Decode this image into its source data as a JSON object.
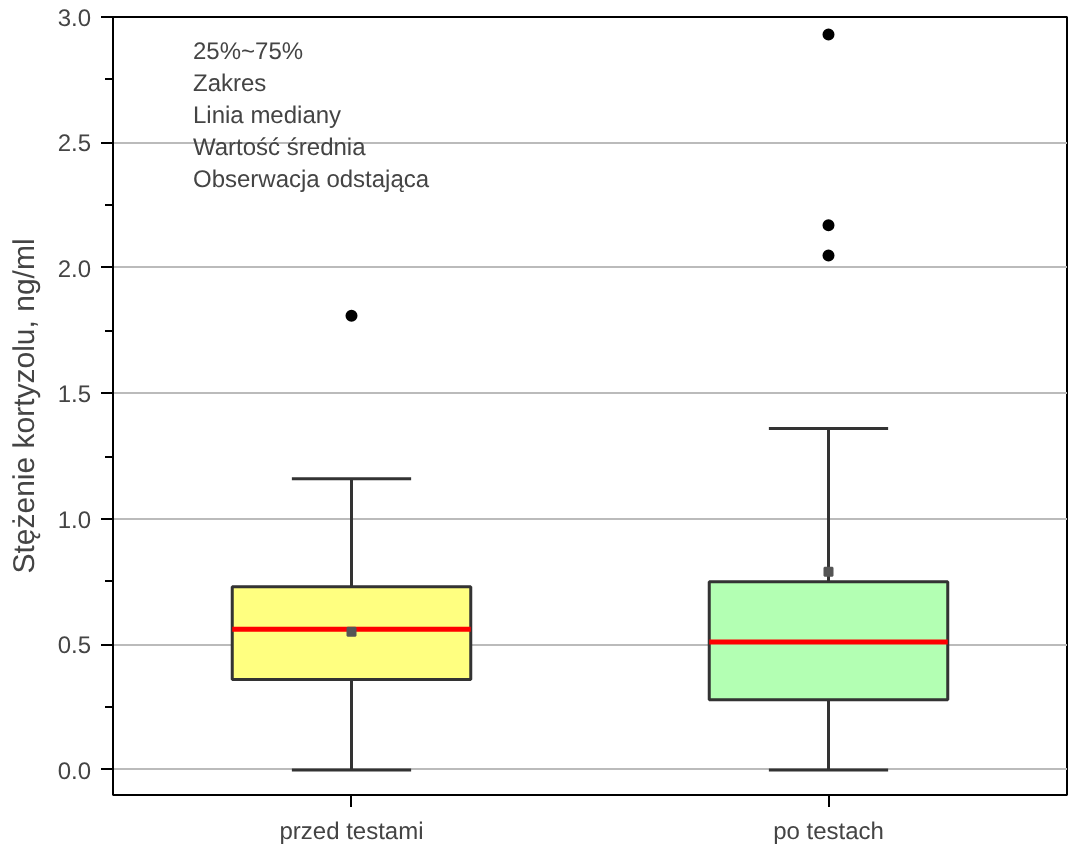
{
  "chart_data": {
    "type": "box",
    "ylabel": "Stężenie kortyzolu, ng/ml",
    "categories": [
      "przed testami",
      "po testach"
    ],
    "boxes": [
      {
        "low": 0,
        "q1": 0.36,
        "median": 0.56,
        "q3": 0.73,
        "high": 1.16,
        "mean": 0.55,
        "outliers": [
          1.81
        ]
      },
      {
        "low": 0,
        "q1": 0.28,
        "median": 0.51,
        "q3": 0.75,
        "high": 1.36,
        "mean": 0.79,
        "outliers": [
          2.93,
          2.17,
          2.05
        ]
      }
    ],
    "colors": [
      "#ffff80",
      "#b3ffb3"
    ],
    "ylim": [
      -0.1,
      3.0
    ],
    "yticks": [
      {
        "value": 0,
        "label": "0.0"
      },
      {
        "value": 0.5,
        "label": "0.5"
      },
      {
        "value": 1,
        "label": "1.0"
      },
      {
        "value": 1.5,
        "label": "1.5"
      },
      {
        "value": 2,
        "label": "2.0"
      },
      {
        "value": 2.5,
        "label": "2.5"
      },
      {
        "value": 3,
        "label": "3.0"
      }
    ],
    "grid": "y",
    "annotations": [
      "25%~75%",
      "Zakres",
      "Linia mediany",
      "Wartość średnia",
      "Obserwacja odstająca"
    ]
  }
}
